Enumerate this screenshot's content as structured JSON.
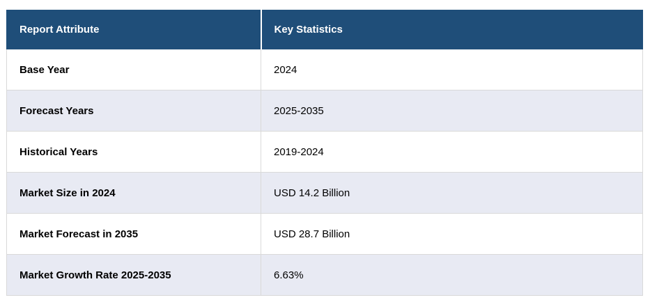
{
  "table": {
    "headers": {
      "attribute": "Report Attribute",
      "statistics": "Key Statistics"
    },
    "rows": [
      {
        "attribute": "Base Year",
        "value": "2024"
      },
      {
        "attribute": "Forecast Years",
        "value": "2025-2035"
      },
      {
        "attribute": "Historical Years",
        "value": "2019-2024"
      },
      {
        "attribute": "Market Size in 2024",
        "value": "USD 14.2 Billion"
      },
      {
        "attribute": "Market Forecast in 2035",
        "value": "USD 28.7 Billion"
      },
      {
        "attribute": "Market Growth Rate 2025-2035",
        "value": "6.63%"
      }
    ],
    "colors": {
      "header_bg": "#1F4E79",
      "header_text": "#FFFFFF",
      "row_bg": "#FFFFFF",
      "row_alt_bg": "#E8EAF3",
      "border": "#D9D9D9",
      "text": "#000000"
    }
  }
}
